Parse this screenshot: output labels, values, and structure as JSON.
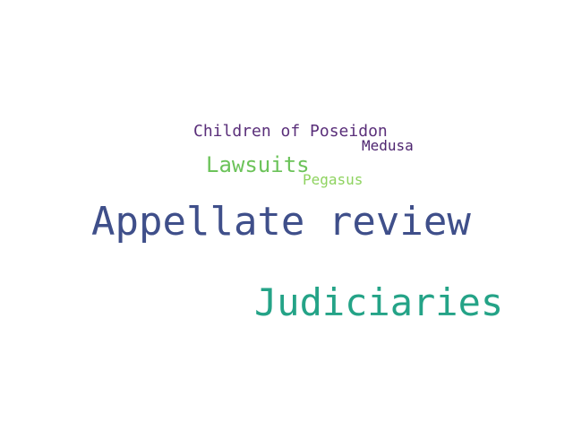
{
  "words": [
    {
      "id": "children",
      "text": "Children of Poseidon",
      "color": "#5a2f7a"
    },
    {
      "id": "medusa",
      "text": "Medusa",
      "color": "#4e2570"
    },
    {
      "id": "lawsuits",
      "text": "Lawsuits",
      "color": "#6cc35a"
    },
    {
      "id": "pegasus",
      "text": "Pegasus",
      "color": "#8ed35f"
    },
    {
      "id": "appellate",
      "text": "Appellate review",
      "color": "#3f4f8a"
    },
    {
      "id": "judiciaries",
      "text": "Judiciaries",
      "color": "#24a387"
    }
  ]
}
